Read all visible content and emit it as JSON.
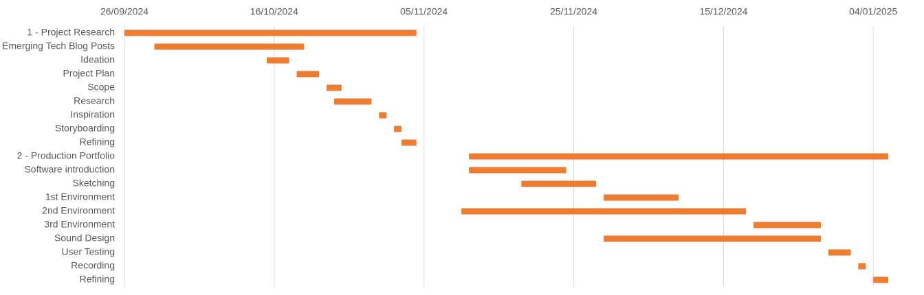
{
  "chart_data": {
    "type": "gantt",
    "categories": [
      "1 - Project Research",
      "Emerging Tech Blog Posts",
      "Ideation",
      "Project Plan",
      "Scope",
      "Research",
      "Inspiration",
      "Storyboarding",
      "Refining",
      "2 - Production Portfolio",
      "Software introduction",
      "Sketching",
      "1st Environment",
      "2nd Environment",
      "3rd Environment",
      "Sound Design",
      "User Testing",
      "Recording",
      "Refining"
    ],
    "start": [
      "26/09/2024",
      "30/09/2024",
      "15/10/2024",
      "19/10/2024",
      "23/10/2024",
      "24/10/2024",
      "30/10/2024",
      "01/11/2024",
      "02/11/2024",
      "11/11/2024",
      "11/11/2024",
      "18/11/2024",
      "29/11/2024",
      "10/11/2024",
      "19/12/2024",
      "29/11/2024",
      "29/12/2024",
      "02/01/2025",
      "04/01/2025"
    ],
    "end": [
      "04/11/2024",
      "20/10/2024",
      "18/10/2024",
      "22/10/2024",
      "25/10/2024",
      "29/10/2024",
      "31/10/2024",
      "02/11/2024",
      "04/11/2024",
      "06/01/2025",
      "24/11/2024",
      "28/11/2024",
      "09/12/2024",
      "18/12/2024",
      "28/12/2024",
      "28/12/2024",
      "01/01/2025",
      "03/01/2025",
      "06/01/2025"
    ],
    "color": "#ed7d31",
    "xlim": [
      "26/09/2024",
      "06/01/2025"
    ],
    "xticks": [
      "26/09/2024",
      "16/10/2024",
      "05/11/2024",
      "25/11/2024",
      "15/12/2024",
      "04/01/2025"
    ],
    "grid": true
  }
}
